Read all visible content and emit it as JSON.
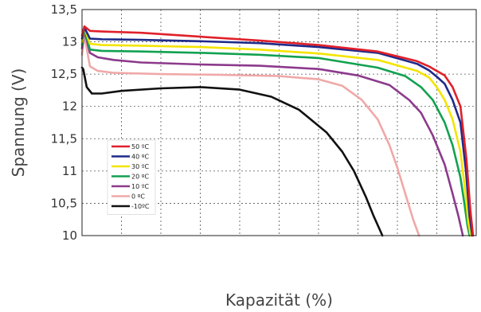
{
  "chart_data": {
    "type": "line",
    "xlabel": "Kapazität (%)",
    "ylabel": "Spannung (V)",
    "xlim": [
      0,
      100
    ],
    "ylim": [
      10,
      13.5
    ],
    "y_ticks": [
      "10",
      "10,5",
      "11",
      "11,5",
      "12",
      "12,5",
      "13",
      "13,5"
    ],
    "y_tick_values": [
      10,
      10.5,
      11,
      11.5,
      12,
      12.5,
      13,
      13.5
    ],
    "grid": true,
    "legend_position": "left",
    "series": [
      {
        "name": "50 ºC",
        "color": "#e0202a",
        "x": [
          0,
          0.6,
          2,
          5,
          15,
          30,
          45,
          60,
          75,
          85,
          88,
          90,
          92,
          94,
          96,
          97.5,
          98.5,
          99.2
        ],
        "y": [
          13.1,
          13.24,
          13.17,
          13.16,
          13.14,
          13.08,
          13.02,
          12.95,
          12.85,
          12.7,
          12.62,
          12.55,
          12.48,
          12.3,
          12.0,
          11.2,
          10.4,
          10.0
        ]
      },
      {
        "name": "40 ºC",
        "color": "#1e2a8a",
        "x": [
          0,
          0.6,
          2,
          5,
          15,
          30,
          45,
          60,
          75,
          85,
          88,
          90,
          92,
          94,
          96,
          97.4,
          98.3,
          99.0
        ],
        "y": [
          13.05,
          13.22,
          13.05,
          13.04,
          13.03,
          13.01,
          12.98,
          12.92,
          12.83,
          12.66,
          12.56,
          12.46,
          12.35,
          12.1,
          11.75,
          11.0,
          10.3,
          10.0
        ]
      },
      {
        "name": "30 ºC",
        "color": "#f4e400",
        "x": [
          0,
          0.6,
          2,
          5,
          15,
          30,
          45,
          60,
          75,
          85,
          88,
          90,
          92,
          94,
          96,
          97.2,
          98.0,
          98.6
        ],
        "y": [
          13.0,
          13.22,
          12.97,
          12.95,
          12.94,
          12.92,
          12.88,
          12.82,
          12.72,
          12.55,
          12.45,
          12.3,
          12.1,
          11.8,
          11.3,
          10.7,
          10.2,
          10.0
        ]
      },
      {
        "name": "20 ºC",
        "color": "#12a150",
        "x": [
          0,
          0.6,
          2,
          5,
          15,
          30,
          45,
          60,
          75,
          82,
          86,
          89,
          92,
          94,
          96,
          97.0,
          97.8,
          98.3
        ],
        "y": [
          12.95,
          13.2,
          12.88,
          12.86,
          12.85,
          12.83,
          12.8,
          12.75,
          12.6,
          12.47,
          12.3,
          12.1,
          11.75,
          11.4,
          10.9,
          10.5,
          10.15,
          10.0
        ]
      },
      {
        "name": "10 ºC",
        "color": "#8c3a8c",
        "x": [
          0,
          0.6,
          2,
          4,
          8,
          15,
          30,
          45,
          60,
          70,
          78,
          83,
          86,
          89,
          92,
          94,
          95.5,
          96.6
        ],
        "y": [
          12.9,
          13.17,
          12.83,
          12.76,
          12.72,
          12.68,
          12.65,
          12.63,
          12.58,
          12.48,
          12.33,
          12.1,
          11.9,
          11.55,
          11.1,
          10.65,
          10.3,
          10.0
        ]
      },
      {
        "name": "0 ºC",
        "color": "#f0a8a8",
        "x": [
          0,
          0.6,
          2,
          4,
          8,
          20,
          35,
          50,
          60,
          66,
          71,
          75,
          78,
          80,
          82,
          84,
          85.5
        ],
        "y": [
          12.8,
          13.1,
          12.62,
          12.55,
          12.52,
          12.5,
          12.49,
          12.47,
          12.42,
          12.32,
          12.1,
          11.8,
          11.4,
          11.05,
          10.65,
          10.25,
          10.0
        ]
      },
      {
        "name": "-10ºC",
        "color": "#111111",
        "x": [
          0,
          0.3,
          1.2,
          2.5,
          5,
          10,
          20,
          30,
          40,
          48,
          55,
          62,
          66,
          69,
          72,
          74,
          76.2
        ],
        "y": [
          12.6,
          12.58,
          12.3,
          12.2,
          12.2,
          12.24,
          12.28,
          12.3,
          12.26,
          12.15,
          11.95,
          11.6,
          11.3,
          11.0,
          10.6,
          10.3,
          10.0
        ]
      }
    ]
  }
}
